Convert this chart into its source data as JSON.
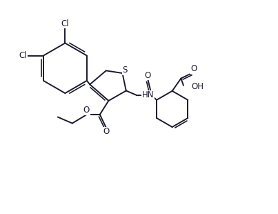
{
  "background_color": "#ffffff",
  "line_color": "#1a1a2e",
  "line_width": 1.4,
  "font_size": 8.5,
  "figsize": [
    4.03,
    3.1
  ],
  "dpi": 100,
  "xlim": [
    0,
    10.5
  ],
  "ylim": [
    0,
    8.5
  ]
}
